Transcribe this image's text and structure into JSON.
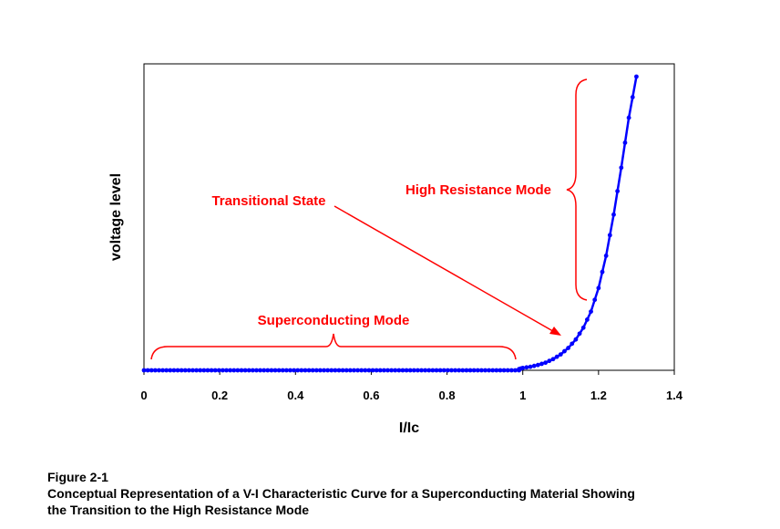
{
  "chart_data": {
    "type": "line",
    "title": "",
    "xlabel": "I/Ic",
    "ylabel": "voltage level",
    "xlim": [
      0,
      1.4
    ],
    "ylim": [
      0,
      1
    ],
    "x_ticks": [
      "0",
      "0.2",
      "0.4",
      "0.6",
      "0.8",
      "1",
      "1.2",
      "1.4"
    ],
    "y_ticks": [],
    "grid": false,
    "legend": "none",
    "series": [
      {
        "color": "#0000ff",
        "marker": "circle",
        "x": [
          0.99,
          1.0,
          1.02,
          1.04,
          1.06,
          1.08,
          1.1,
          1.12,
          1.14,
          1.16,
          1.18,
          1.2,
          1.22,
          1.24,
          1.26,
          1.28,
          1.3
        ],
        "y": [
          0.004,
          0.008,
          0.012,
          0.018,
          0.026,
          0.038,
          0.054,
          0.076,
          0.105,
          0.145,
          0.2,
          0.28,
          0.39,
          0.53,
          0.69,
          0.86,
          1.0
        ],
        "flat_from_x": 0,
        "flat_to_x": 0.99,
        "flat_y": 0
      }
    ],
    "annotations": [
      {
        "text": "Superconducting Mode",
        "color": "#ff0000"
      },
      {
        "text": "Transitional State",
        "color": "#ff0000"
      },
      {
        "text": "High Resistance Mode",
        "color": "#ff0000"
      }
    ]
  },
  "caption": {
    "label": "Figure 2-1",
    "line1": "Conceptual Representation of a V-I Characteristic Curve for a Superconducting Material Showing",
    "line2": "the Transition to the High Resistance Mode"
  }
}
